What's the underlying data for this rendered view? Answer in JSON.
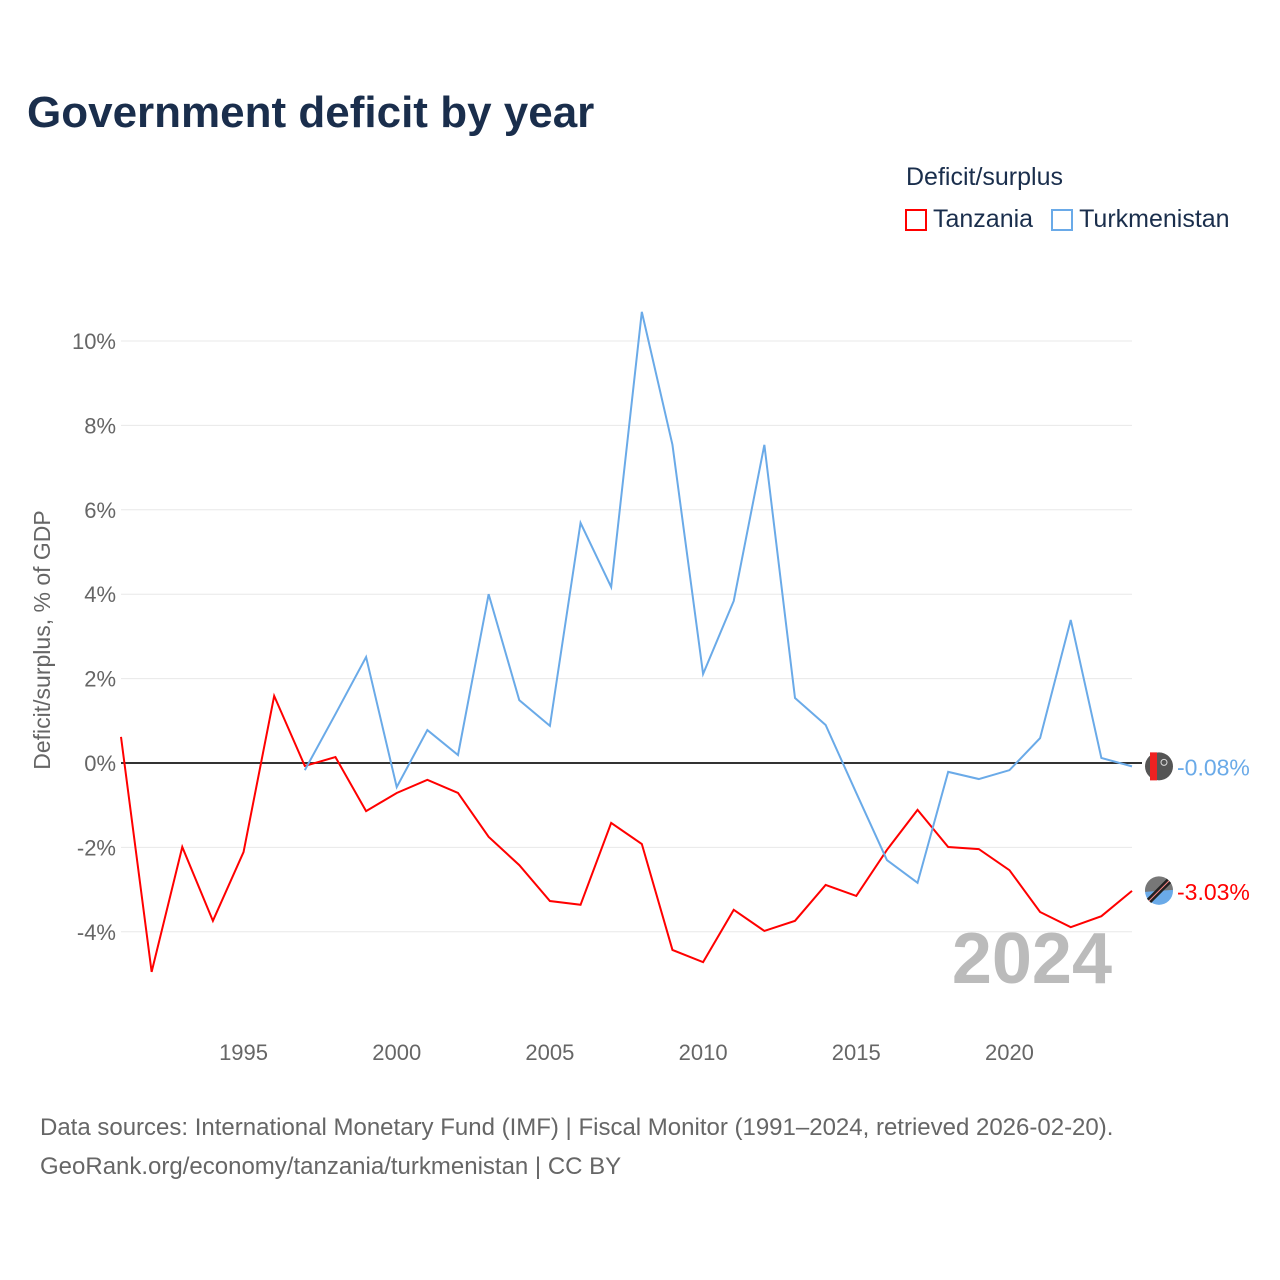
{
  "title": "Government deficit by year",
  "legend": {
    "title": "Deficit/surplus",
    "items": [
      {
        "label": "Tanzania",
        "color": "#ff0000"
      },
      {
        "label": "Turkmenistan",
        "color": "#6aaae8"
      }
    ]
  },
  "source": {
    "line1": "Data sources: International Monetary Fund (IMF) | Fiscal Monitor (1991–2024, retrieved 2026-02-20).",
    "line2": "GeoRank.org/economy/tanzania/turkmenistan | CC BY"
  },
  "chart_data": {
    "type": "line",
    "title": "Government deficit by year",
    "xlabel": "",
    "ylabel": "Deficit/surplus, % of GDP",
    "xlim": [
      1991,
      2024
    ],
    "ylim": [
      -5.6,
      11
    ],
    "xticks": [
      1995,
      2000,
      2005,
      2010,
      2015,
      2020
    ],
    "xtick_labels": [
      "1995",
      "2000",
      "2005",
      "2010",
      "2015",
      "2020"
    ],
    "yticks": [
      10,
      8,
      6,
      4,
      2,
      0,
      -2,
      -4
    ],
    "ytick_labels": [
      "10%",
      "8%",
      "6%",
      "4%",
      "2%",
      "0%",
      "-2%",
      "-4%"
    ],
    "year_label": "2024",
    "series": [
      {
        "name": "Tanzania",
        "color": "#ff0000",
        "end_label": "-3.03%",
        "x": [
          1991,
          1992,
          1993,
          1994,
          1995,
          1996,
          1997,
          1998,
          1999,
          2000,
          2001,
          2002,
          2003,
          2004,
          2005,
          2006,
          2007,
          2008,
          2009,
          2010,
          2011,
          2012,
          2013,
          2014,
          2015,
          2016,
          2017,
          2018,
          2019,
          2020,
          2021,
          2022,
          2023,
          2024
        ],
        "values": [
          0.62,
          -4.95,
          -1.99,
          -3.74,
          -2.11,
          1.59,
          -0.07,
          0.14,
          -1.14,
          -0.71,
          -0.4,
          -0.71,
          -1.75,
          -2.42,
          -3.27,
          -3.36,
          -1.42,
          -1.92,
          -4.43,
          -4.72,
          -3.48,
          -3.98,
          -3.74,
          -2.89,
          -3.15,
          -2.06,
          -1.11,
          -1.99,
          -2.04,
          -2.54,
          -3.53,
          -3.89,
          -3.63,
          -3.03
        ]
      },
      {
        "name": "Turkmenistan",
        "color": "#6aaae8",
        "end_label": "-0.08%",
        "x": [
          1997,
          1998,
          1999,
          2000,
          2001,
          2002,
          2003,
          2004,
          2005,
          2006,
          2007,
          2008,
          2009,
          2010,
          2011,
          2012,
          2013,
          2014,
          2015,
          2016,
          2017,
          2018,
          2019,
          2020,
          2021,
          2022,
          2023,
          2024
        ],
        "values": [
          -0.17,
          1.16,
          2.51,
          -0.57,
          0.78,
          0.19,
          4.0,
          1.49,
          0.88,
          5.69,
          4.17,
          10.69,
          7.54,
          2.11,
          3.84,
          7.54,
          1.54,
          0.9,
          -0.71,
          -2.3,
          -2.84,
          -0.21,
          -0.38,
          -0.17,
          0.59,
          3.39,
          0.12,
          -0.08
        ]
      }
    ]
  }
}
